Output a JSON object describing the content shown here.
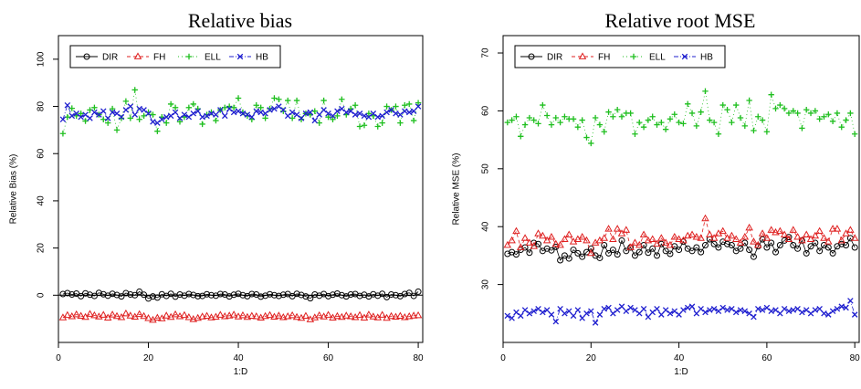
{
  "chart_data": [
    {
      "type": "scatter",
      "title": "Relative bias",
      "xlabel": "1:D",
      "ylabel": "Relative Bias (%)",
      "xlim": [
        0,
        81
      ],
      "ylim": [
        -20,
        110
      ],
      "xticks": [
        "0",
        "20",
        "40",
        "60",
        "80"
      ],
      "yticks": [
        "0",
        "20",
        "40",
        "60",
        "80",
        "100"
      ],
      "reference_line_y": 0,
      "legend_position": "top-left",
      "grid": false,
      "x": [
        1,
        2,
        3,
        4,
        5,
        6,
        7,
        8,
        9,
        10,
        11,
        12,
        13,
        14,
        15,
        16,
        17,
        18,
        19,
        20,
        21,
        22,
        23,
        24,
        25,
        26,
        27,
        28,
        29,
        30,
        31,
        32,
        33,
        34,
        35,
        36,
        37,
        38,
        39,
        40,
        41,
        42,
        43,
        44,
        45,
        46,
        47,
        48,
        49,
        50,
        51,
        52,
        53,
        54,
        55,
        56,
        57,
        58,
        59,
        60,
        61,
        62,
        63,
        64,
        65,
        66,
        67,
        68,
        69,
        70,
        71,
        72,
        73,
        74,
        75,
        76,
        77,
        78,
        79,
        80
      ],
      "series": [
        {
          "name": "DIR",
          "color": "#000000",
          "marker": "circle",
          "line": "solid",
          "values": [
            0.5,
            0.9,
            0.3,
            0.7,
            -0.4,
            0.8,
            0.2,
            -0.3,
            1.0,
            0.4,
            -0.2,
            0.6,
            0.1,
            -0.5,
            0.9,
            0.3,
            0.0,
            1.5,
            0.2,
            -1.4,
            -0.5,
            -1.0,
            0.4,
            -0.3,
            0.6,
            -0.6,
            0.3,
            -0.2,
            0.5,
            0.1,
            -0.4,
            -0.3,
            0.4,
            0.0,
            -0.2,
            0.5,
            0.3,
            -0.5,
            0.2,
            0.6,
            0.0,
            -0.4,
            0.5,
            0.3,
            -0.6,
            -0.2,
            0.4,
            0.0,
            -0.3,
            0.2,
            0.5,
            -0.4,
            0.6,
            0.1,
            -0.5,
            -1.3,
            0.3,
            -0.2,
            0.5,
            -0.4,
            0.2,
            0.7,
            0.0,
            -0.5,
            0.3,
            0.5,
            -0.3,
            0.2,
            -0.5,
            0.4,
            -0.2,
            0.6,
            -0.8,
            0.3,
            0.0,
            -0.4,
            0.5,
            1.0,
            -0.3,
            1.5
          ]
        },
        {
          "name": "FH",
          "color": "#df2020",
          "marker": "triangle",
          "line": "dashed",
          "values": [
            -9.5,
            -8.5,
            -9.0,
            -8.2,
            -8.8,
            -9.3,
            -8.0,
            -8.6,
            -9.1,
            -8.4,
            -9.6,
            -8.3,
            -8.9,
            -9.4,
            -7.8,
            -8.7,
            -9.2,
            -8.1,
            -8.9,
            -9.8,
            -10.5,
            -9.6,
            -9.9,
            -8.7,
            -9.3,
            -8.2,
            -9.0,
            -8.5,
            -9.4,
            -10.2,
            -9.7,
            -9.1,
            -8.8,
            -9.5,
            -9.2,
            -8.4,
            -9.0,
            -8.7,
            -8.3,
            -9.1,
            -8.6,
            -9.3,
            -8.8,
            -9.0,
            -9.6,
            -8.9,
            -8.5,
            -9.2,
            -8.7,
            -9.4,
            -9.0,
            -8.6,
            -9.3,
            -9.7,
            -8.8,
            -10.3,
            -9.5,
            -8.6,
            -9.1,
            -8.4,
            -9.6,
            -8.9,
            -9.3,
            -8.7,
            -9.0,
            -9.4,
            -8.5,
            -9.6,
            -8.3,
            -9.1,
            -9.5,
            -8.4,
            -9.7,
            -8.9,
            -9.2,
            -8.8,
            -9.4,
            -9.0,
            -8.7,
            -8.6
          ]
        },
        {
          "name": "ELL",
          "color": "#1fbf1f",
          "marker": "plus",
          "line": "dotted",
          "values": [
            68.5,
            75.5,
            79.2,
            76.0,
            77.0,
            73.8,
            78.5,
            79.5,
            76.5,
            74.5,
            73.0,
            79.0,
            70.0,
            75.0,
            82.2,
            75.0,
            87.0,
            74.5,
            76.0,
            77.5,
            76.5,
            69.5,
            75.5,
            73.0,
            81.0,
            79.5,
            73.5,
            75.5,
            79.5,
            81.0,
            79.0,
            72.5,
            76.5,
            77.5,
            74.0,
            78.5,
            79.5,
            80.0,
            79.5,
            83.5,
            77.5,
            76.0,
            74.5,
            80.5,
            79.5,
            75.0,
            79.0,
            83.5,
            83.0,
            78.0,
            82.5,
            75.0,
            82.5,
            74.5,
            77.0,
            76.5,
            78.0,
            73.0,
            82.5,
            75.5,
            74.5,
            76.0,
            83.0,
            76.5,
            79.0,
            80.5,
            71.5,
            72.0,
            77.0,
            76.0,
            71.5,
            73.0,
            80.0,
            78.5,
            80.0,
            73.0,
            80.5,
            81.0,
            74.0,
            81.5
          ]
        },
        {
          "name": "HB",
          "color": "#1f1fcf",
          "marker": "x",
          "line": "dashdot",
          "values": [
            74.5,
            80.5,
            76.0,
            77.0,
            75.5,
            76.5,
            75.0,
            77.5,
            76.5,
            78.0,
            75.0,
            77.5,
            77.0,
            75.5,
            78.5,
            80.0,
            76.5,
            79.0,
            78.5,
            77.0,
            73.5,
            73.0,
            74.5,
            75.5,
            76.0,
            77.5,
            75.0,
            76.5,
            75.5,
            77.0,
            78.0,
            75.5,
            76.0,
            77.0,
            76.5,
            78.5,
            76.0,
            79.0,
            77.5,
            78.0,
            77.0,
            76.5,
            75.5,
            78.0,
            77.5,
            77.0,
            78.5,
            79.0,
            80.0,
            78.5,
            76.0,
            77.5,
            76.5,
            75.0,
            77.0,
            77.5,
            74.0,
            76.5,
            78.5,
            77.0,
            76.0,
            78.0,
            79.0,
            77.5,
            78.0,
            76.5,
            77.0,
            76.0,
            75.5,
            77.0,
            75.5,
            76.0,
            77.5,
            78.5,
            77.0,
            76.5,
            78.0,
            77.5,
            78.0,
            80.0
          ]
        }
      ]
    },
    {
      "type": "scatter",
      "title": "Relative root MSE",
      "xlabel": "1:D",
      "ylabel": "Relative MSE (%)",
      "xlim": [
        0,
        81
      ],
      "ylim": [
        20,
        73
      ],
      "xticks": [
        "0",
        "20",
        "40",
        "60",
        "80"
      ],
      "yticks": [
        "30",
        "40",
        "50",
        "60",
        "70"
      ],
      "legend_position": "top-left",
      "grid": false,
      "x": [
        1,
        2,
        3,
        4,
        5,
        6,
        7,
        8,
        9,
        10,
        11,
        12,
        13,
        14,
        15,
        16,
        17,
        18,
        19,
        20,
        21,
        22,
        23,
        24,
        25,
        26,
        27,
        28,
        29,
        30,
        31,
        32,
        33,
        34,
        35,
        36,
        37,
        38,
        39,
        40,
        41,
        42,
        43,
        44,
        45,
        46,
        47,
        48,
        49,
        50,
        51,
        52,
        53,
        54,
        55,
        56,
        57,
        58,
        59,
        60,
        61,
        62,
        63,
        64,
        65,
        66,
        67,
        68,
        69,
        70,
        71,
        72,
        73,
        74,
        75,
        76,
        77,
        78,
        79,
        80
      ],
      "series": [
        {
          "name": "DIR",
          "color": "#000000",
          "marker": "circle",
          "line": "solid",
          "values": [
            35.3,
            35.6,
            35.2,
            36.0,
            36.4,
            35.5,
            37.2,
            37.0,
            35.8,
            36.2,
            35.9,
            36.5,
            34.2,
            35.0,
            34.5,
            36.0,
            35.4,
            34.8,
            35.6,
            36.2,
            35.0,
            34.6,
            36.8,
            35.4,
            36.0,
            35.2,
            37.6,
            35.8,
            36.4,
            35.0,
            35.6,
            36.8,
            35.5,
            36.2,
            35.0,
            37.0,
            35.8,
            35.3,
            36.6,
            36.0,
            37.4,
            36.2,
            35.8,
            36.4,
            35.6,
            36.8,
            37.8,
            37.0,
            36.4,
            37.4,
            37.0,
            36.8,
            35.8,
            36.2,
            37.2,
            36.0,
            34.8,
            36.6,
            37.8,
            36.4,
            37.2,
            35.6,
            36.8,
            37.6,
            38.2,
            36.8,
            36.2,
            37.6,
            35.4,
            36.6,
            37.2,
            35.8,
            36.8,
            36.4,
            35.4,
            36.6,
            37.0,
            36.8,
            38.0,
            36.4
          ]
        },
        {
          "name": "FH",
          "color": "#df2020",
          "marker": "triangle",
          "line": "dashed",
          "values": [
            36.8,
            37.6,
            39.2,
            36.4,
            38.0,
            37.2,
            36.6,
            38.8,
            38.4,
            37.6,
            38.2,
            37.0,
            36.8,
            37.8,
            38.6,
            37.4,
            37.8,
            38.2,
            37.6,
            35.4,
            37.2,
            37.6,
            38.0,
            39.6,
            37.8,
            39.6,
            38.8,
            39.4,
            36.4,
            37.2,
            36.8,
            38.6,
            37.6,
            37.8,
            37.0,
            38.0,
            37.2,
            36.8,
            38.2,
            37.8,
            37.6,
            38.4,
            38.6,
            38.2,
            38.0,
            41.4,
            38.6,
            38.0,
            38.8,
            39.2,
            38.0,
            38.4,
            37.8,
            37.2,
            38.2,
            39.8,
            37.4,
            36.8,
            38.8,
            38.0,
            39.4,
            39.0,
            39.2,
            38.6,
            37.8,
            39.4,
            38.2,
            37.6,
            38.6,
            37.8,
            38.4,
            39.2,
            38.0,
            37.4,
            39.6,
            39.6,
            37.6,
            38.8,
            39.4,
            38.0
          ]
        },
        {
          "name": "ELL",
          "color": "#1fbf1f",
          "marker": "plus",
          "line": "dotted",
          "values": [
            58.0,
            58.4,
            59.0,
            55.6,
            57.6,
            58.8,
            58.4,
            57.8,
            61.0,
            59.2,
            57.6,
            58.8,
            58.0,
            59.0,
            58.6,
            58.6,
            57.2,
            58.4,
            55.4,
            54.4,
            58.8,
            57.6,
            56.4,
            59.8,
            59.0,
            60.2,
            59.0,
            59.6,
            59.6,
            56.0,
            58.0,
            57.2,
            58.4,
            59.0,
            57.6,
            58.0,
            56.8,
            58.6,
            59.4,
            58.0,
            57.8,
            61.2,
            59.6,
            57.4,
            59.8,
            63.4,
            58.4,
            58.0,
            56.0,
            61.0,
            60.2,
            58.0,
            61.0,
            58.8,
            57.4,
            61.8,
            56.6,
            59.0,
            58.4,
            56.4,
            62.8,
            60.4,
            61.0,
            60.4,
            59.6,
            60.0,
            59.6,
            57.0,
            60.2,
            59.6,
            60.0,
            58.6,
            59.0,
            59.4,
            58.2,
            59.6,
            57.2,
            58.4,
            59.6,
            56.0
          ]
        },
        {
          "name": "HB",
          "color": "#1f1fcf",
          "marker": "x",
          "line": "dashdot",
          "values": [
            24.6,
            24.2,
            25.2,
            24.6,
            25.6,
            25.0,
            25.4,
            25.8,
            25.2,
            25.6,
            24.8,
            23.6,
            25.8,
            25.0,
            25.4,
            24.6,
            25.6,
            24.2,
            25.0,
            25.4,
            23.4,
            24.8,
            25.8,
            26.0,
            25.0,
            25.6,
            26.2,
            25.4,
            26.0,
            25.6,
            25.0,
            25.8,
            24.4,
            25.2,
            25.8,
            24.8,
            25.6,
            25.0,
            25.4,
            24.8,
            25.6,
            26.0,
            26.2,
            25.0,
            25.8,
            25.2,
            25.6,
            25.8,
            25.4,
            26.0,
            25.6,
            25.8,
            25.2,
            25.6,
            25.4,
            25.0,
            24.4,
            25.8,
            25.6,
            26.0,
            25.4,
            25.6,
            25.0,
            25.8,
            25.4,
            25.6,
            25.8,
            25.2,
            25.6,
            25.0,
            25.6,
            25.8,
            25.0,
            24.8,
            25.4,
            25.8,
            26.2,
            26.0,
            27.2,
            24.8
          ]
        }
      ]
    }
  ]
}
